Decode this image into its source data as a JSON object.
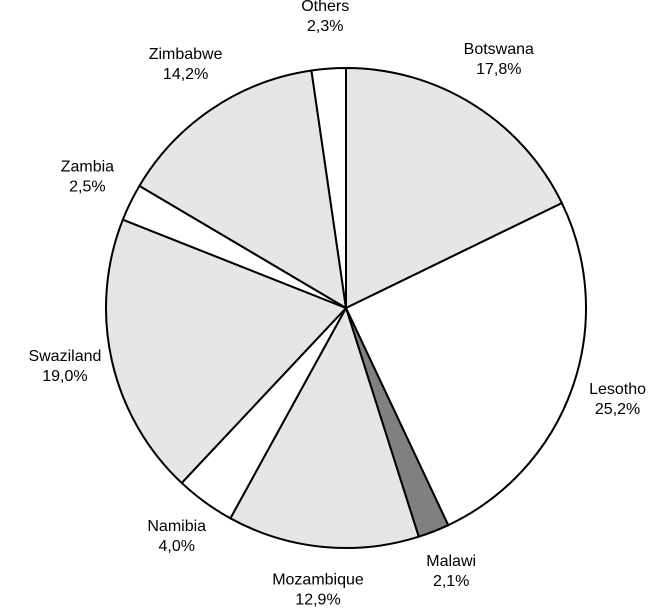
{
  "chart_data": {
    "type": "pie",
    "categories": [
      "Botswana",
      "Lesotho",
      "Malawi",
      "Mozambique",
      "Namibia",
      "Swaziland",
      "Zambia",
      "Zimbabwe",
      "Others"
    ],
    "values": [
      17.8,
      25.2,
      2.1,
      12.9,
      4.0,
      19.0,
      2.5,
      14.2,
      2.3
    ],
    "value_labels": [
      "17,8%",
      "25,2%",
      "2,1%",
      "12,9%",
      "4,0%",
      "19,0%",
      "2,5%",
      "14,2%",
      "2,3%"
    ],
    "colors": [
      "#e6e6e6",
      "#ffffff",
      "#808080",
      "#e6e6e6",
      "#ffffff",
      "#e6e6e6",
      "#ffffff",
      "#e6e6e6",
      "#ffffff"
    ]
  }
}
